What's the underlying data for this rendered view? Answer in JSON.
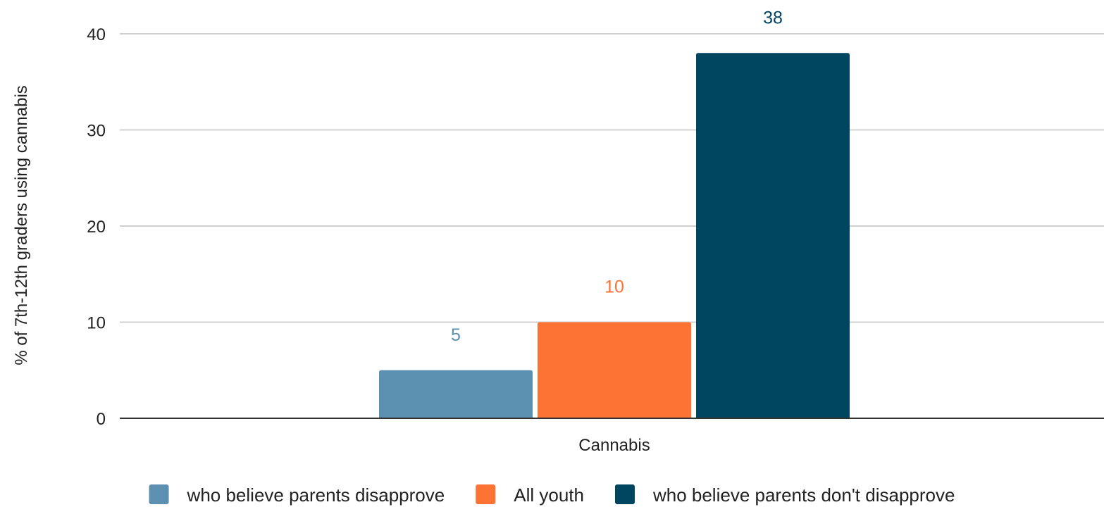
{
  "chart_data": {
    "type": "bar",
    "categories": [
      "Cannabis"
    ],
    "series": [
      {
        "name": "who believe parents disapprove",
        "values": [
          5
        ],
        "color": "#5b90b0"
      },
      {
        "name": "All youth",
        "values": [
          10
        ],
        "color": "#fc7333"
      },
      {
        "name": "who believe parents don't disapprove",
        "values": [
          38
        ],
        "color": "#00455f"
      }
    ],
    "ylabel": "% of 7th-12th graders using cannabis",
    "xlabel": "",
    "ylim": [
      0,
      40
    ],
    "yticks": [
      0,
      10,
      20,
      30,
      40
    ],
    "grid": true,
    "legend_position": "bottom"
  }
}
